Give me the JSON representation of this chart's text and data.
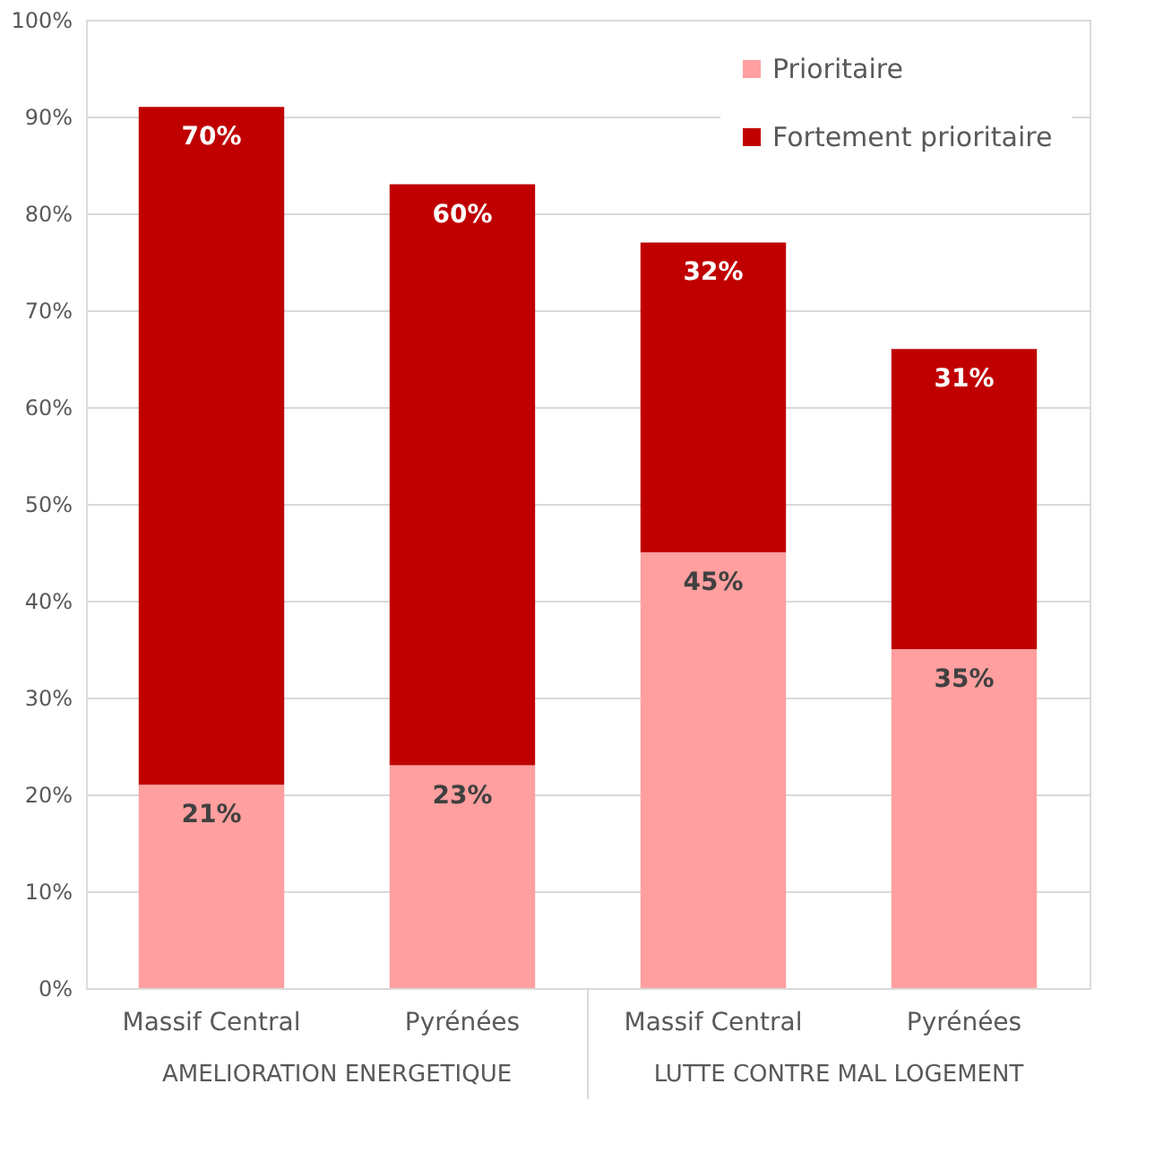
{
  "chart_data": {
    "type": "bar",
    "stacked": true,
    "categories": [
      "Massif Central",
      "Pyrénées",
      "Massif Central",
      "Pyrénées"
    ],
    "series": [
      {
        "name": "Prioritaire",
        "color": "#ff9f9f",
        "values": [
          21,
          23,
          45,
          35
        ],
        "value_labels": [
          "21%",
          "23%",
          "45%",
          "35%"
        ]
      },
      {
        "name": "Fortement prioritaire",
        "color": "#c00000",
        "values": [
          70,
          60,
          32,
          31
        ],
        "value_labels": [
          "70%",
          "60%",
          "32%",
          "31%"
        ]
      }
    ],
    "annotations": [
      "AMELIORATION ENERGETIQUE",
      "LUTTE CONTRE MAL LOGEMENT"
    ],
    "ylim": [
      0,
      100
    ],
    "yticks": [
      {
        "value": 0,
        "label": "0%"
      },
      {
        "value": 10,
        "label": "10%"
      },
      {
        "value": 20,
        "label": "20%"
      },
      {
        "value": 30,
        "label": "30%"
      },
      {
        "value": 40,
        "label": "40%"
      },
      {
        "value": 50,
        "label": "50%"
      },
      {
        "value": 60,
        "label": "60%"
      },
      {
        "value": 70,
        "label": "70%"
      },
      {
        "value": 80,
        "label": "80%"
      },
      {
        "value": 90,
        "label": "90%"
      },
      {
        "value": 100,
        "label": "100%"
      }
    ],
    "grid": "y",
    "legend": "top right"
  }
}
